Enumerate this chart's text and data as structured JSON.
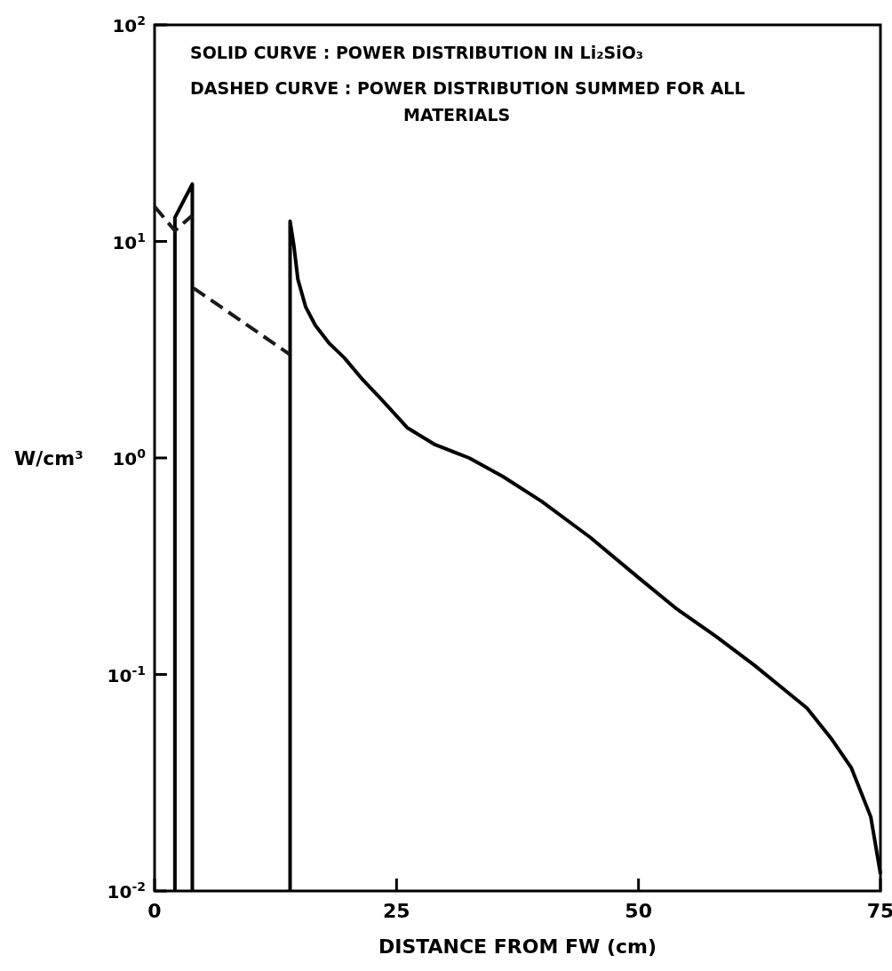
{
  "chart_data": {
    "type": "line",
    "xlabel": "DISTANCE FROM FW (cm)",
    "ylabel": "W/cm³",
    "log": "y",
    "grid": false,
    "marker": "none",
    "xlim": [
      0,
      75
    ],
    "xticks": [
      0,
      25,
      50,
      75
    ],
    "ylim": [
      0.01,
      100
    ],
    "yticks": [
      {
        "value": 0.01,
        "label": "10$^{-2}$"
      },
      {
        "value": 0.1,
        "label": "10$^{-1}$"
      },
      {
        "value": 1,
        "label": "10$^{0}$"
      },
      {
        "value": 10,
        "label": "10$^{1}$"
      },
      {
        "value": 100,
        "label": "10$^{2}$"
      }
    ],
    "annotations": [
      "SOLID CURVE : POWER DISTRIBUTION IN Li₂SiO₃",
      "DASHED CURVE : POWER DISTRIBUTION SUMMED FOR ALL MATERIALS"
    ],
    "series": [
      {
        "color": "#000000",
        "line_style": "solid",
        "x": [
          2.1,
          2.1,
          3.9,
          3.9,
          9,
          14,
          14,
          14.4,
          14.8,
          15.6,
          16.6,
          18,
          19.6,
          21.5,
          23.5,
          26.1,
          29,
          32.5,
          36,
          40,
          45,
          50,
          54,
          58,
          62,
          67.4,
          70,
          72,
          74,
          75
        ],
        "values": [
          0.01,
          12.9,
          18.4,
          0.01,
          null,
          0.01,
          12.4,
          9.5,
          6.7,
          5.0,
          4.1,
          3.4,
          2.9,
          2.3,
          1.85,
          1.38,
          1.15,
          1.0,
          0.82,
          0.63,
          0.43,
          0.28,
          0.2,
          0.15,
          0.11,
          0.07,
          0.05,
          0.037,
          0.022,
          0.012
        ]
      },
      {
        "color": "#1a1a1a",
        "line_style": "dashed",
        "x": [
          0,
          2.1,
          3.9,
          3.95,
          4,
          14
        ],
        "values": [
          14.5,
          11.2,
          13.2,
          null,
          6.1,
          3.0
        ]
      }
    ]
  }
}
